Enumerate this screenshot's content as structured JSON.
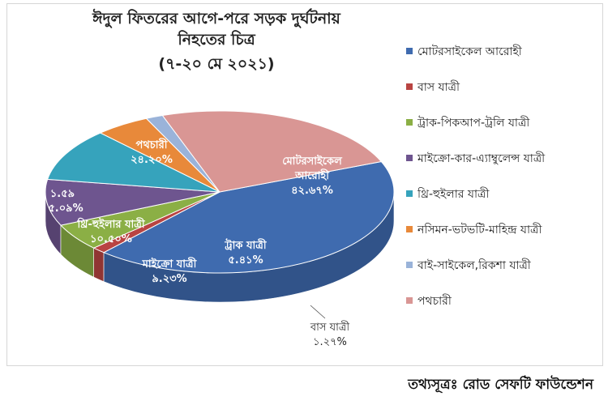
{
  "chart_data": {
    "type": "pie",
    "title": [
      "ঈদুল ফিতরের আগে-পরে সড়ক দুর্ঘটনায়",
      "নিহতের চিত্র",
      "(৭-২০ মে ২০২১)"
    ],
    "series": [
      {
        "name": "মোটরসাইকেল আরোহী",
        "value": 42.67,
        "label": [
          "মোটরসাইকেল",
          "আরোহী",
          "৪২.৬৭%"
        ],
        "color": "#3F6BAF"
      },
      {
        "name": "বাস যাত্রী",
        "value": 1.27,
        "label": [
          "বাস যাত্রী",
          "১.২৭%"
        ],
        "color": "#B94442"
      },
      {
        "name": "ট্রাক-পিকআপ-ট্রলি যাত্রী",
        "value": 5.41,
        "label": [
          "ট্রাক যাত্রী",
          "৫.৪১%"
        ],
        "color": "#8BAF45"
      },
      {
        "name": "মাইক্রো-কার-এ্যাম্বুলেন্স যাত্রী",
        "value": 9.23,
        "label": [
          "মাইক্রো যাত্রী",
          "৯.২৩%"
        ],
        "color": "#6E558F"
      },
      {
        "name": "থ্রি-হুইলার যাত্রী",
        "value": 10.5,
        "label": [
          "থ্রি-হুইলার যাত্রী",
          "১০.৫০%"
        ],
        "color": "#36A3BC"
      },
      {
        "name": "নসিমন-ভটভটি-মাহিন্দ্র যাত্রী",
        "value": 5.09,
        "label": [
          "৫.০৯%"
        ],
        "color": "#E8893A"
      },
      {
        "name": "বাই-সাইকেল,রিকশা যাত্রী",
        "value": 1.59,
        "label": [
          "১.৫৯"
        ],
        "color": "#9AB3D9"
      },
      {
        "name": "পথচারী",
        "value": 24.2,
        "label": [
          "পথচারী",
          "২৪.২০%"
        ],
        "color": "#D99694"
      }
    ],
    "legend_position": "right"
  },
  "source": "তথ্যসূত্রঃ রোড সেফটি ফাউন্ডেশন"
}
